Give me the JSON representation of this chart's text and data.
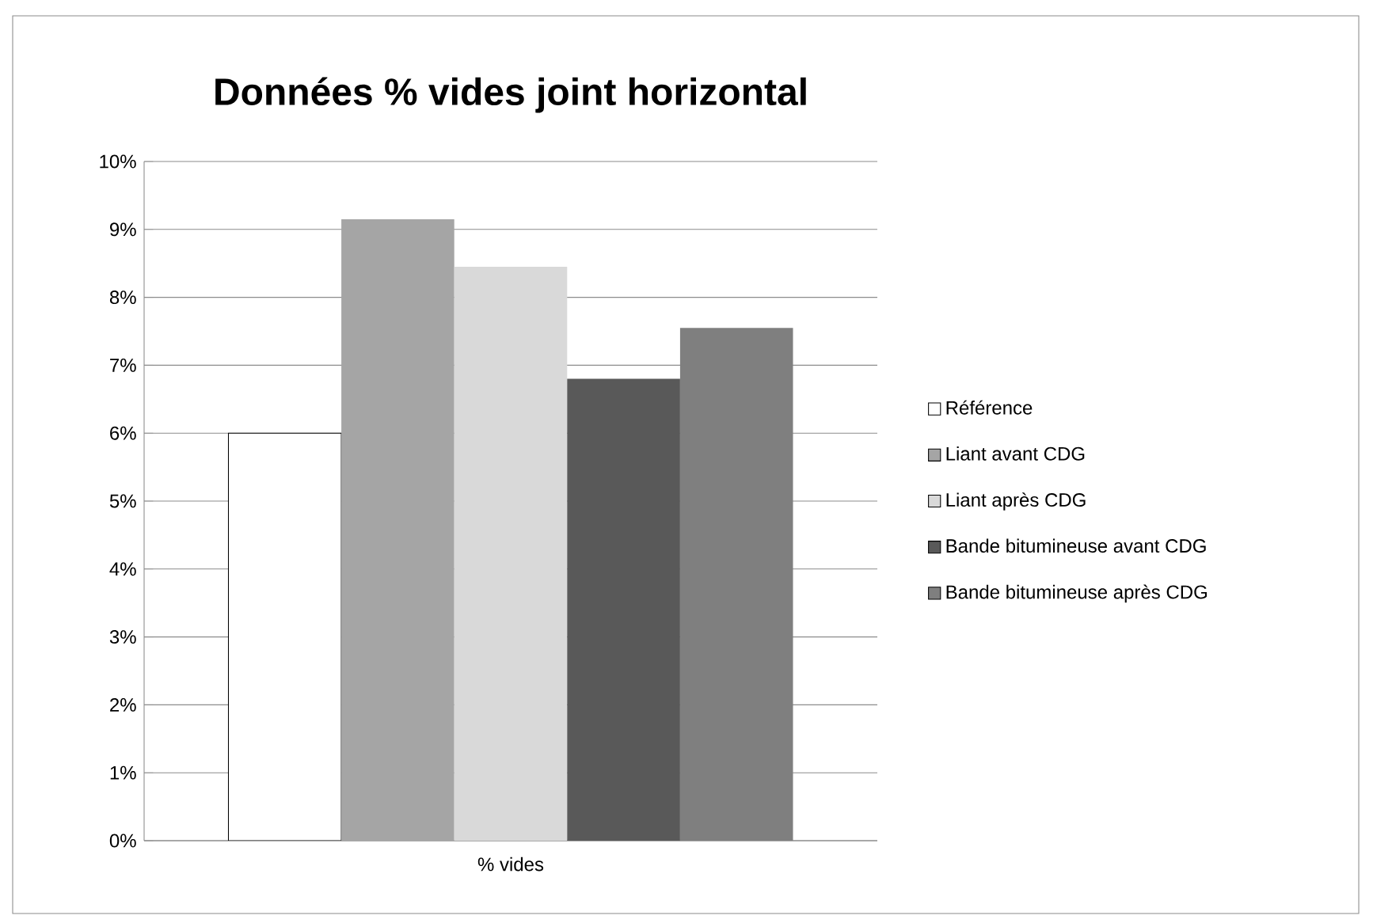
{
  "chart_data": {
    "type": "bar",
    "title": "Données % vides joint horizontal",
    "categories": [
      "% vides"
    ],
    "series": [
      {
        "name": "Référence",
        "color": "#ffffff",
        "values": [
          6.0
        ]
      },
      {
        "name": "Liant avant CDG",
        "color": "#a5a5a5",
        "values": [
          9.15
        ]
      },
      {
        "name": "Liant après CDG",
        "color": "#d9d9d9",
        "values": [
          8.45
        ]
      },
      {
        "name": "Bande bitumineuse avant CDG",
        "color": "#595959",
        "values": [
          6.8
        ]
      },
      {
        "name": "Bande bitumineuse après CDG",
        "color": "#7f7f7f",
        "values": [
          7.55
        ]
      }
    ],
    "ylim": [
      0,
      10
    ],
    "yticks": [
      {
        "value": 0,
        "label": "0%"
      },
      {
        "value": 1,
        "label": "1%"
      },
      {
        "value": 2,
        "label": "2%"
      },
      {
        "value": 3,
        "label": "3%"
      },
      {
        "value": 4,
        "label": "4%"
      },
      {
        "value": 5,
        "label": "5%"
      },
      {
        "value": 6,
        "label": "6%"
      },
      {
        "value": 7,
        "label": "7%"
      },
      {
        "value": 8,
        "label": "8%"
      },
      {
        "value": 9,
        "label": "9%"
      },
      {
        "value": 10,
        "label": "10%"
      }
    ],
    "grid": "y",
    "legend": "right"
  }
}
